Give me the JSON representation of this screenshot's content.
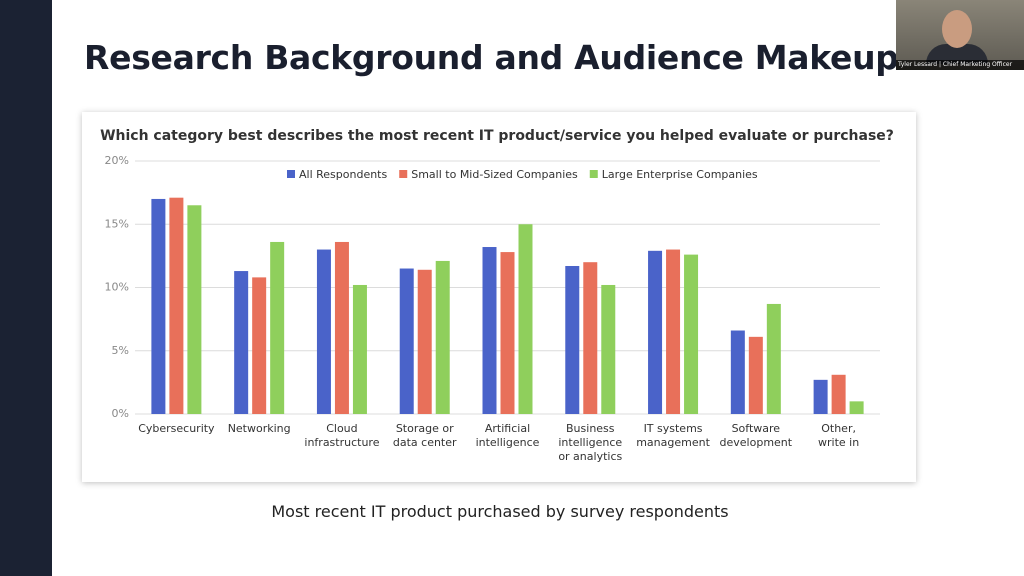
{
  "slide": {
    "title": "Research Background and Audience Makeup",
    "caption": "Most recent IT product purchased by survey respondents",
    "speaker": "Tyler Lessard | Chief Marketing Officer"
  },
  "chart_data": {
    "type": "bar",
    "title": "Which category best describes the most recent IT product/service you helped evaluate or purchase?",
    "categories": [
      "Cybersecurity",
      "Networking",
      "Cloud\ninfrastructure",
      "Storage or\ndata center",
      "Artificial\nintelligence",
      "Business\nintelligence\nor analytics",
      "IT systems\nmanagement",
      "Software\ndevelopment",
      "Other,\nwrite in"
    ],
    "series": [
      {
        "name": "All Respondents",
        "color": "#4a63c9",
        "values": [
          17.0,
          11.3,
          13.0,
          11.5,
          13.2,
          11.7,
          12.9,
          6.6,
          2.7
        ]
      },
      {
        "name": "Small to Mid-Sized Companies",
        "color": "#e8705a",
        "values": [
          17.1,
          10.8,
          13.6,
          11.4,
          12.8,
          12.0,
          13.0,
          6.1,
          3.1
        ]
      },
      {
        "name": "Large Enterprise Companies",
        "color": "#8fcf5c",
        "values": [
          16.5,
          13.6,
          10.2,
          12.1,
          15.0,
          10.2,
          12.6,
          8.7,
          1.0
        ]
      }
    ],
    "ylim": [
      0,
      20
    ],
    "yticks": [
      {
        "value": 0,
        "label": "0%"
      },
      {
        "value": 5,
        "label": "5%"
      },
      {
        "value": 10,
        "label": "10%"
      },
      {
        "value": 15,
        "label": "15%"
      },
      {
        "value": 20,
        "label": "20%"
      }
    ],
    "grid": true,
    "legend": "top"
  }
}
